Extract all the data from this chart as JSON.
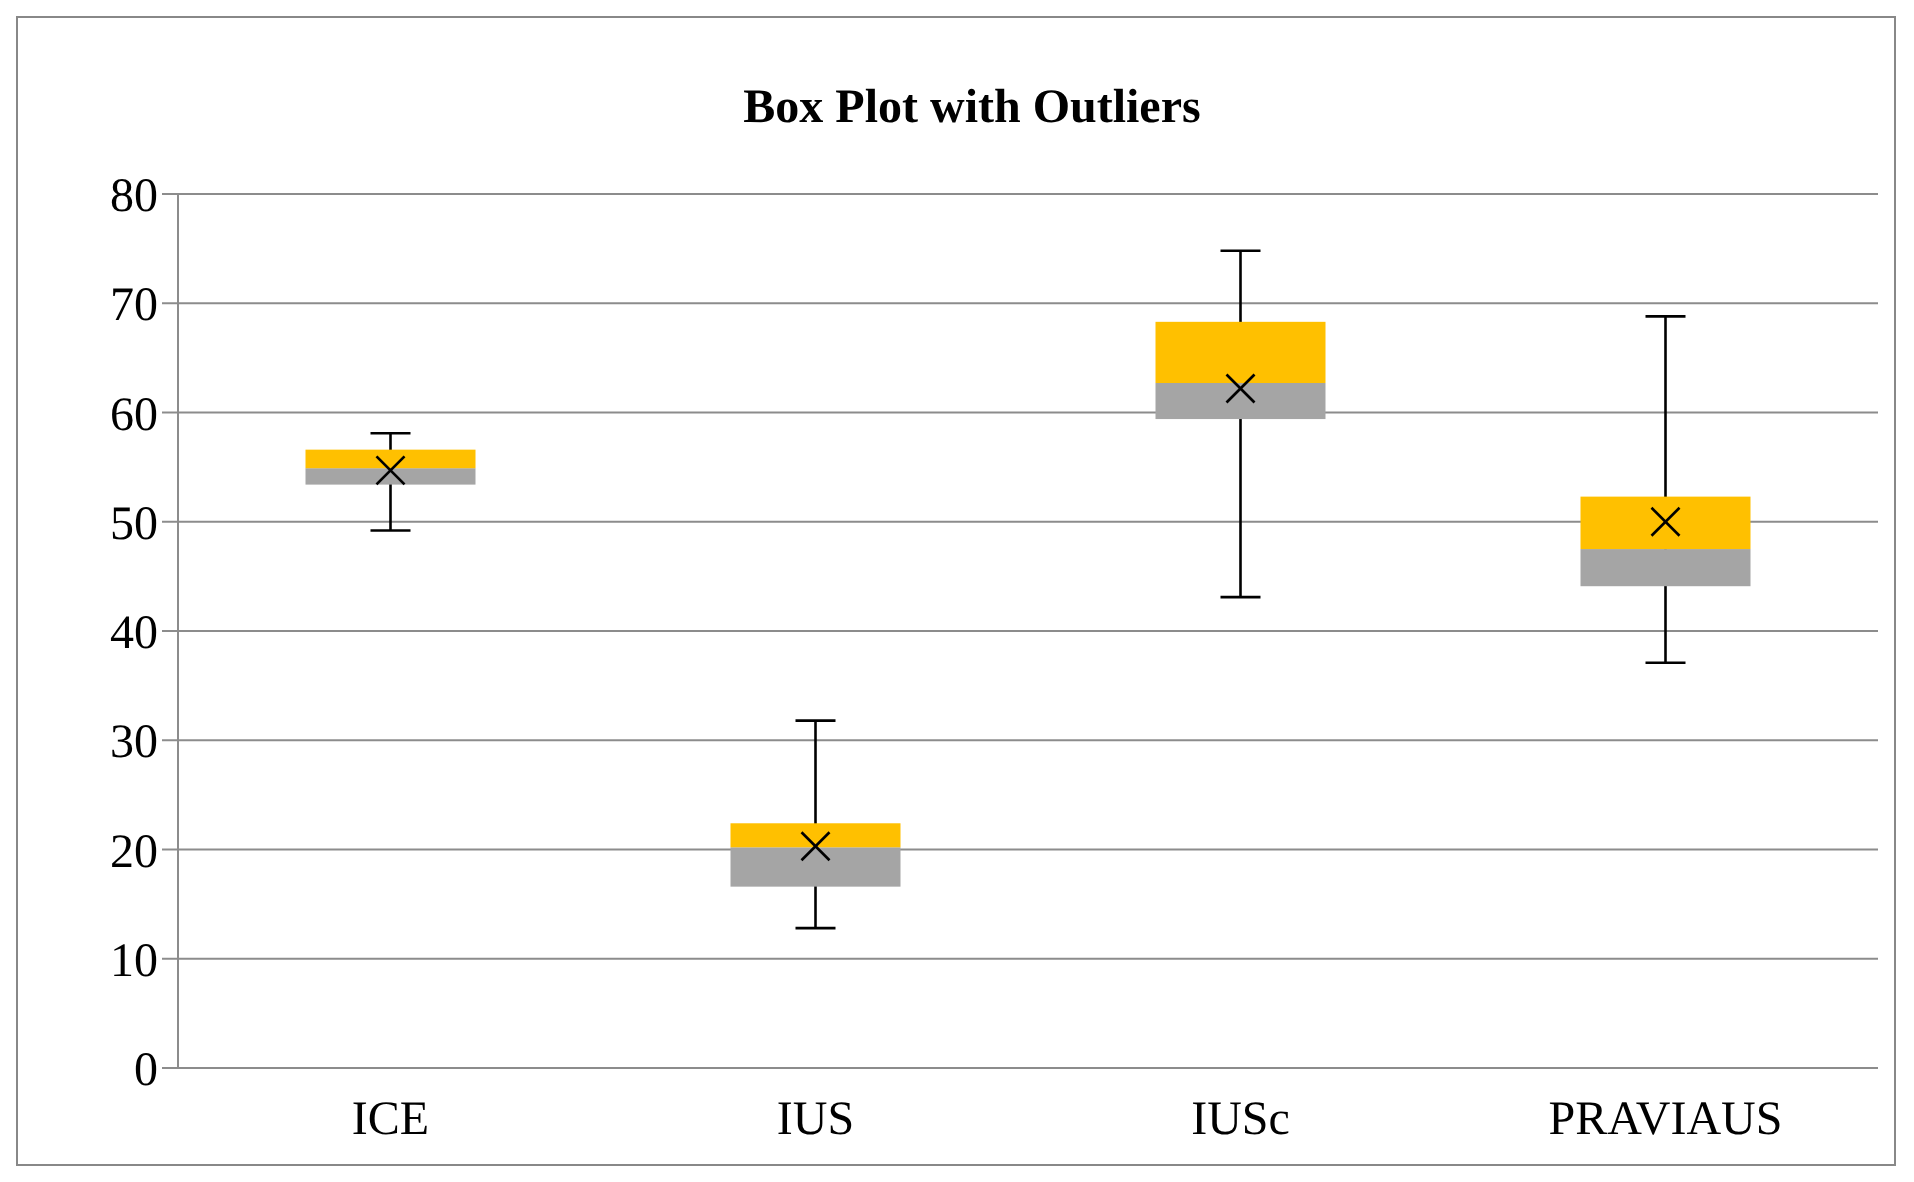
{
  "chart_data": {
    "type": "box",
    "title": "Box Plot with Outliers",
    "categories": [
      "ICE",
      "IUS",
      "IUSc",
      "PRAVIAUS"
    ],
    "color": "#ffc000",
    "series": [
      {
        "color": "#a5a5a5",
        "boxes": [
          {
            "low": 49.2,
            "q1": 53.4,
            "median": 54.9,
            "q3": 56.6,
            "high": 58.1,
            "mean": 54.7
          },
          {
            "low": 12.8,
            "q1": 16.6,
            "median": 20.2,
            "q3": 22.4,
            "high": 31.8,
            "mean": 20.3
          },
          {
            "low": 43.1,
            "q1": 59.4,
            "median": 62.7,
            "q3": 68.3,
            "high": 74.8,
            "mean": 62.2
          },
          {
            "low": 37.1,
            "q1": 44.1,
            "median": 47.5,
            "q3": 52.3,
            "high": 68.8,
            "mean": 50.0
          }
        ]
      }
    ],
    "marker": "cross",
    "ylim": [
      0,
      80
    ],
    "yticks": [
      0,
      10,
      20,
      30,
      40,
      50,
      60,
      70,
      80
    ],
    "grid": "y"
  }
}
